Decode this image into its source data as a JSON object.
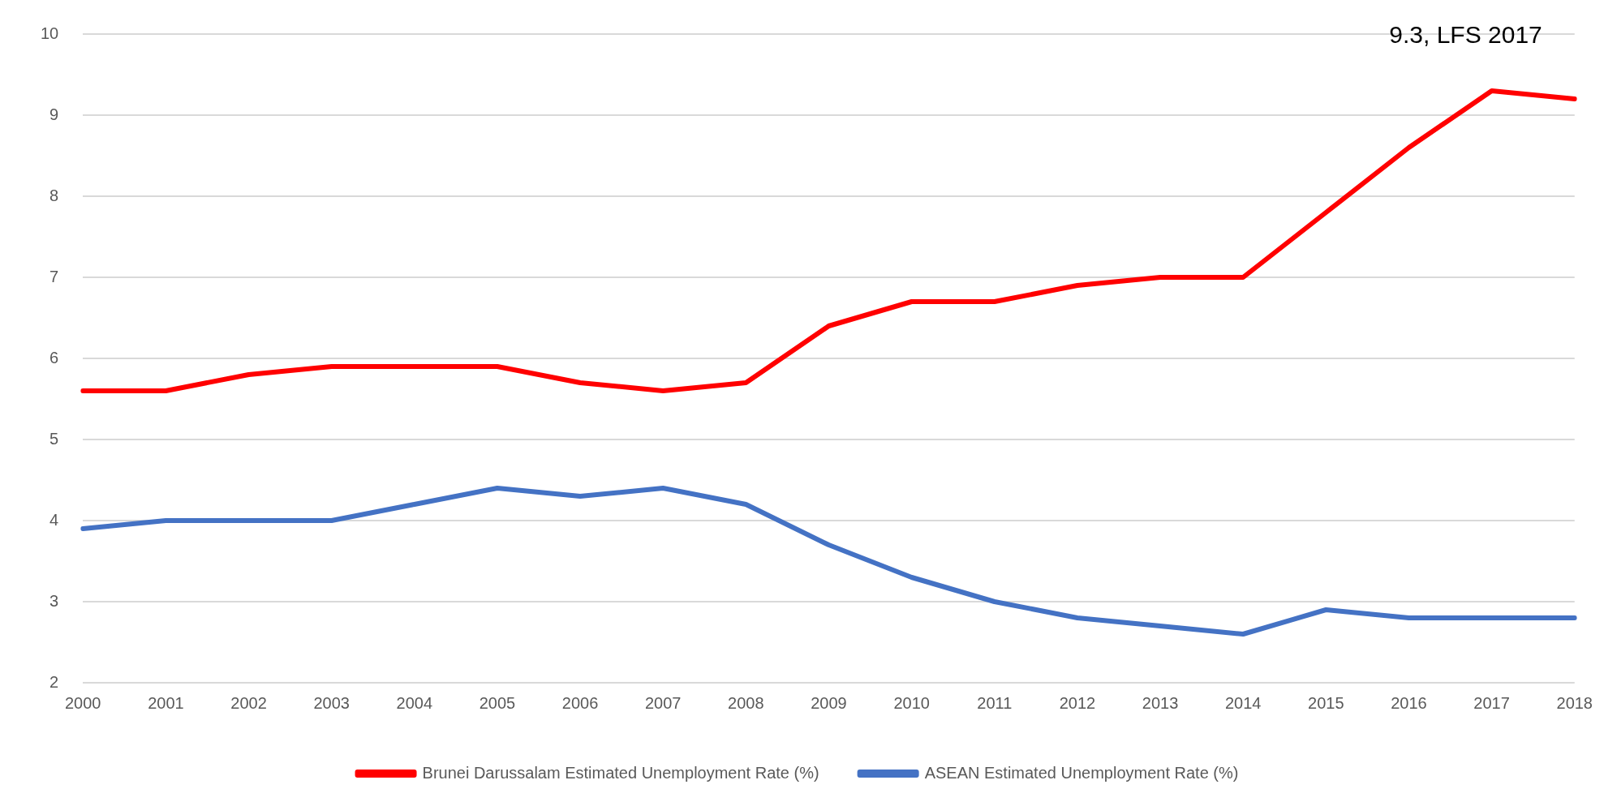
{
  "chart_data": {
    "type": "line",
    "categories": [
      "2000",
      "2001",
      "2002",
      "2003",
      "2004",
      "2005",
      "2006",
      "2007",
      "2008",
      "2009",
      "2010",
      "2011",
      "2012",
      "2013",
      "2014",
      "2015",
      "2016",
      "2017",
      "2018"
    ],
    "series": [
      {
        "name": "Brunei Darussalam Estimated Unemployment Rate (%)",
        "color": "#ff0000",
        "values": [
          5.6,
          5.6,
          5.8,
          5.9,
          5.9,
          5.9,
          5.7,
          5.6,
          5.7,
          6.4,
          6.7,
          6.7,
          6.9,
          7.0,
          7.0,
          7.8,
          8.6,
          9.3,
          9.2
        ]
      },
      {
        "name": "ASEAN Estimated Unemployment Rate (%)",
        "color": "#4472c4",
        "values": [
          3.9,
          4.0,
          4.0,
          4.0,
          4.2,
          4.4,
          4.3,
          4.4,
          4.2,
          3.7,
          3.3,
          3.0,
          2.8,
          2.7,
          2.6,
          2.9,
          2.8,
          2.8,
          2.8
        ]
      }
    ],
    "ylim": [
      2,
      10
    ],
    "yticks": [
      2,
      3,
      4,
      5,
      6,
      7,
      8,
      9,
      10
    ],
    "grid": "y",
    "legend": "bottom",
    "marker": "none",
    "line_style": "solid",
    "annotations": [
      "9.3, LFS 2017"
    ]
  }
}
